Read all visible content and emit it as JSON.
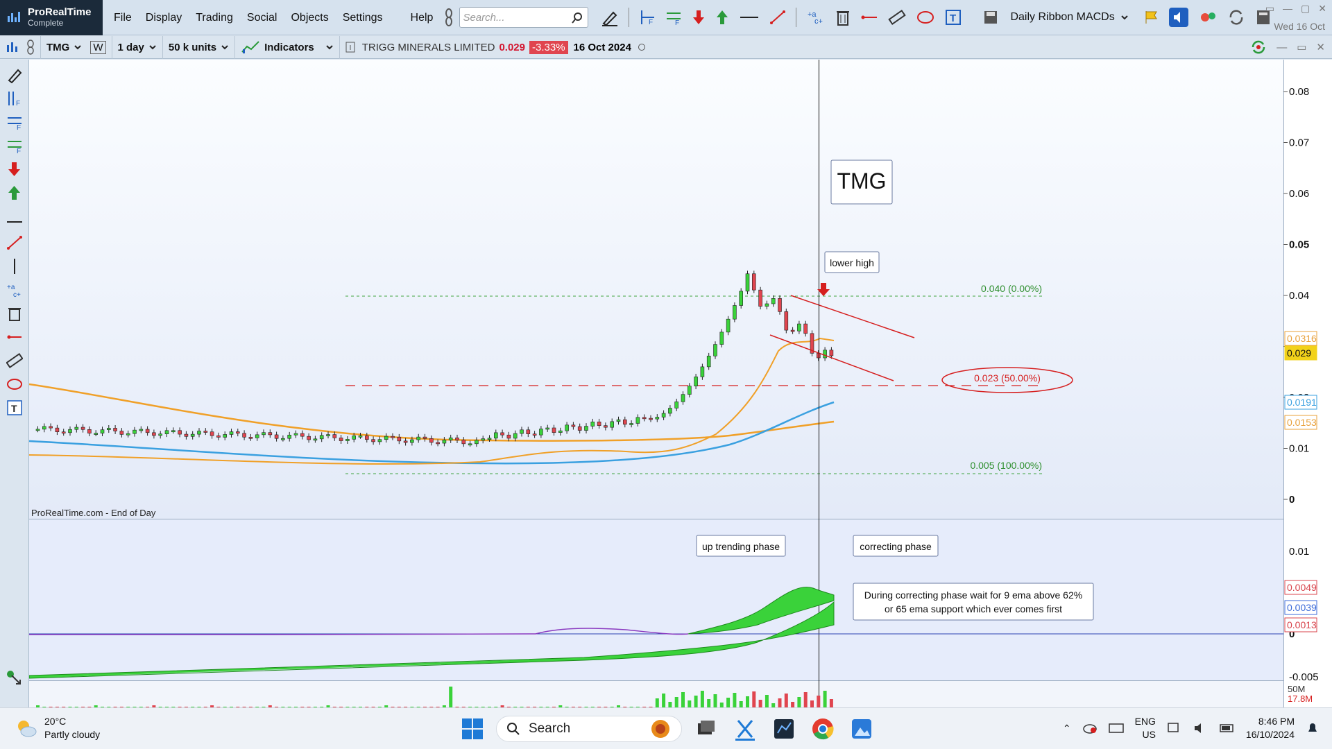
{
  "app": {
    "brand": "ProRealTime",
    "edition": "Complete",
    "menu": [
      "File",
      "Display",
      "Trading",
      "Social",
      "Objects",
      "Settings",
      "Help"
    ],
    "search_placeholder": "Search...",
    "ribbon_label": "Daily Ribbon MACDs",
    "top_date": "Wed 16 Oct"
  },
  "security_bar": {
    "ticker": "TMG",
    "timeframe": "1 day",
    "units": "50 k units",
    "indicators_label": "Indicators",
    "name": "TRIGG MINERALS LIMITED",
    "price": "0.029",
    "change": "-3.33%",
    "date": "16 Oct 2024"
  },
  "chart": {
    "watermark": "ProRealTime.com - End of Day",
    "price_axis": [
      "0.08",
      "0.07",
      "0.06",
      "0.05",
      "0.04",
      "0.03",
      "0.02",
      "0.01",
      "0"
    ],
    "price_tags": [
      {
        "label": "0.0316",
        "color": "#e8a03a"
      },
      {
        "label": "0.029",
        "color": "#f2d21a"
      },
      {
        "label": "0.0191",
        "color": "#3aa0e0"
      },
      {
        "label": "0.0153",
        "color": "#e8a03a"
      }
    ],
    "macd_axis": [
      "0.01",
      "0",
      "-0.005"
    ],
    "macd_tags": [
      {
        "label": "0.0049",
        "color": "#d8434b"
      },
      {
        "label": "0.0039",
        "color": "#3a6ad8"
      },
      {
        "label": "0.0013",
        "color": "#d8434b"
      }
    ],
    "volume_tags": [
      "50M",
      "17.8M"
    ],
    "annotations": {
      "title_box": "TMG",
      "lower_high": "lower high",
      "fib_top": "0.040 (0.00%)",
      "fib_mid": "0.023 (50.00%)",
      "fib_bottom": "0.005 (100.00%)",
      "up_trending": "up trending phase",
      "correcting": "correcting phase",
      "note_line1": "During correcting phase wait for 9 ema above 62%",
      "note_line2": "or 65 ema support which ever comes first"
    }
  },
  "taskbar": {
    "temp": "20°C",
    "weather": "Partly cloudy",
    "search": "Search",
    "lang1": "ENG",
    "lang2": "US",
    "time": "8:46 PM",
    "date": "16/10/2024"
  }
}
